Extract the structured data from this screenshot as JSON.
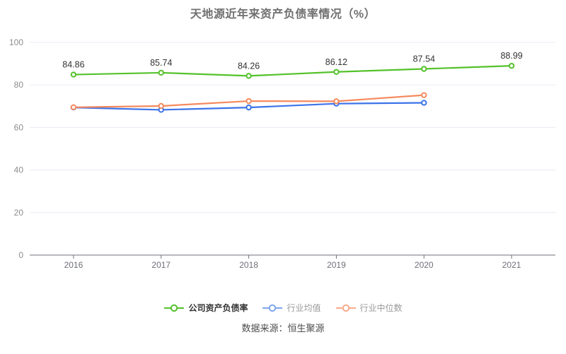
{
  "page": {
    "title": "天地源近年来资产负债率情况（%）",
    "source": "数据来源：恒生聚源"
  },
  "chart_data": {
    "type": "line",
    "title": "天地源近年来资产负债率情况（%）",
    "x": [
      "2016",
      "2017",
      "2018",
      "2019",
      "2020",
      "2021"
    ],
    "series": [
      {
        "name": "公司资产负债率",
        "color": "#54c22b",
        "legend_color": "#54c22b",
        "values": [
          84.86,
          85.74,
          84.26,
          86.12,
          87.54,
          88.99
        ],
        "point_labels": true
      },
      {
        "name": "行业均值",
        "color": "#3c73e8",
        "legend_color": "#7fa7ef",
        "values": [
          69.4,
          68.3,
          69.4,
          71.2,
          71.6,
          null
        ],
        "point_labels": false
      },
      {
        "name": "行业中位数",
        "color": "#f58a5e",
        "legend_color": "#f8ab8b",
        "values": [
          69.5,
          70.1,
          72.4,
          72.3,
          75.2,
          null
        ],
        "point_labels": false
      }
    ],
    "ylim": [
      0,
      100
    ],
    "yticks": [
      0,
      20,
      40,
      60,
      80,
      100
    ],
    "grid": true,
    "legend_position": "bottom",
    "axis_colors": {
      "grid": "#e7ebf4",
      "axis_line": "#6e7079",
      "y_label": "#8c8c8c",
      "x_label": "#6e7079",
      "point_label": "#333333"
    }
  }
}
